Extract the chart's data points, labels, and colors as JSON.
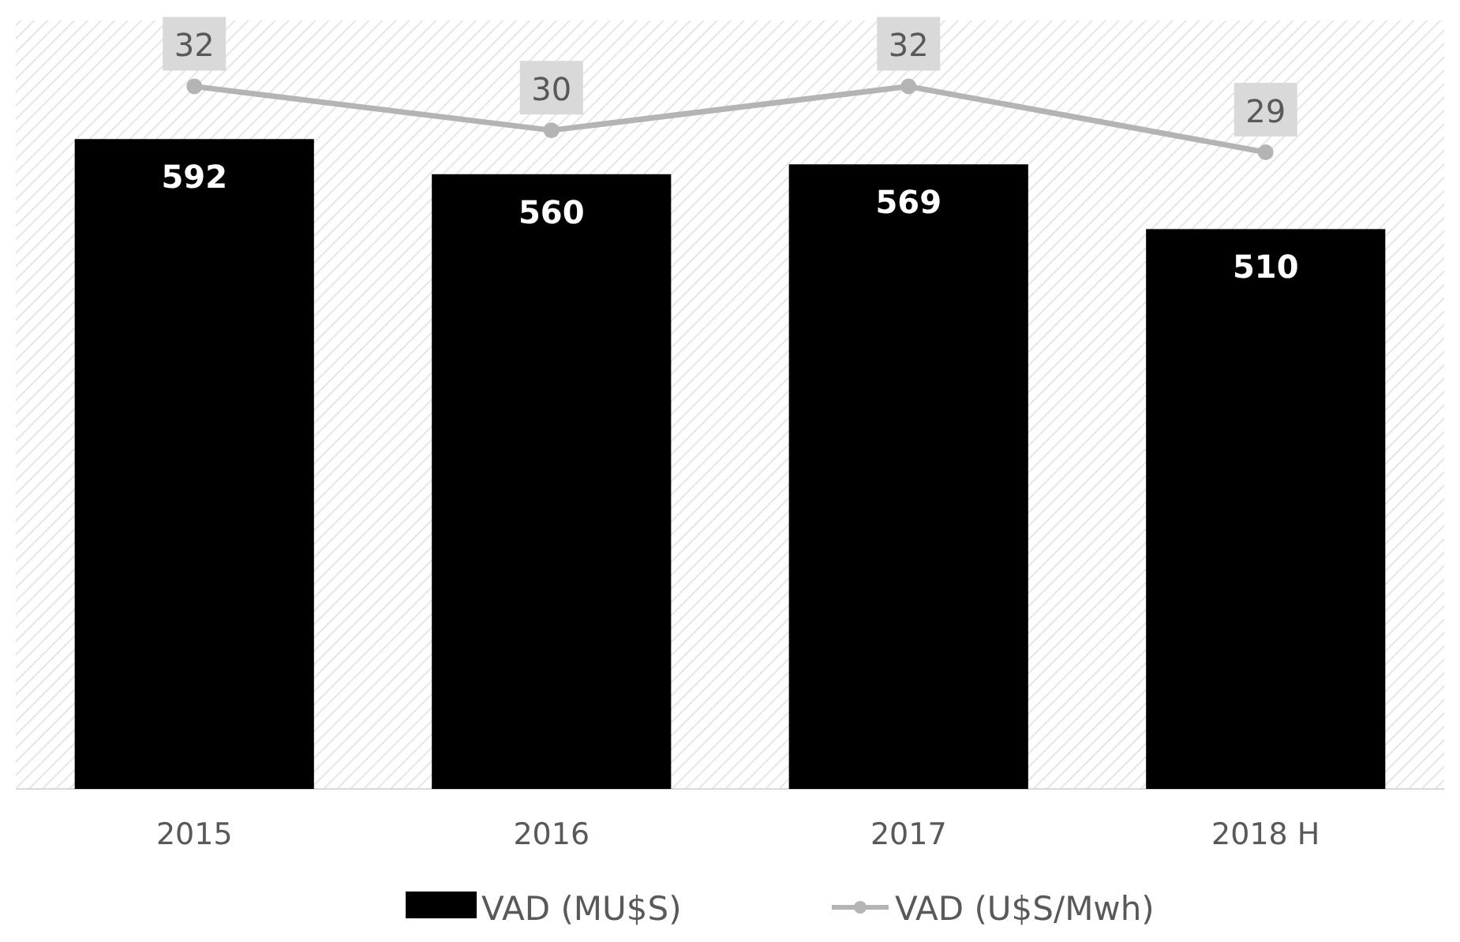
{
  "chart_data": {
    "type": "bar",
    "categories": [
      "2015",
      "2016",
      "2017",
      "2018 H"
    ],
    "series": [
      {
        "name": "VAD (MU$S)",
        "color": "#000000",
        "values": [
          592,
          560,
          569,
          510
        ]
      },
      {
        "name": "VAD (U$S/Mwh)",
        "type": "line",
        "axis": "y2",
        "color": "#b4b4b4",
        "values": [
          32,
          30,
          32,
          29
        ]
      }
    ],
    "ylim": [
      0,
      700
    ],
    "y2lim": [
      0,
      35
    ],
    "tick_labels": "x",
    "data_labels": true,
    "legend": "bottom",
    "marker": "circle",
    "line_style": "solid"
  }
}
